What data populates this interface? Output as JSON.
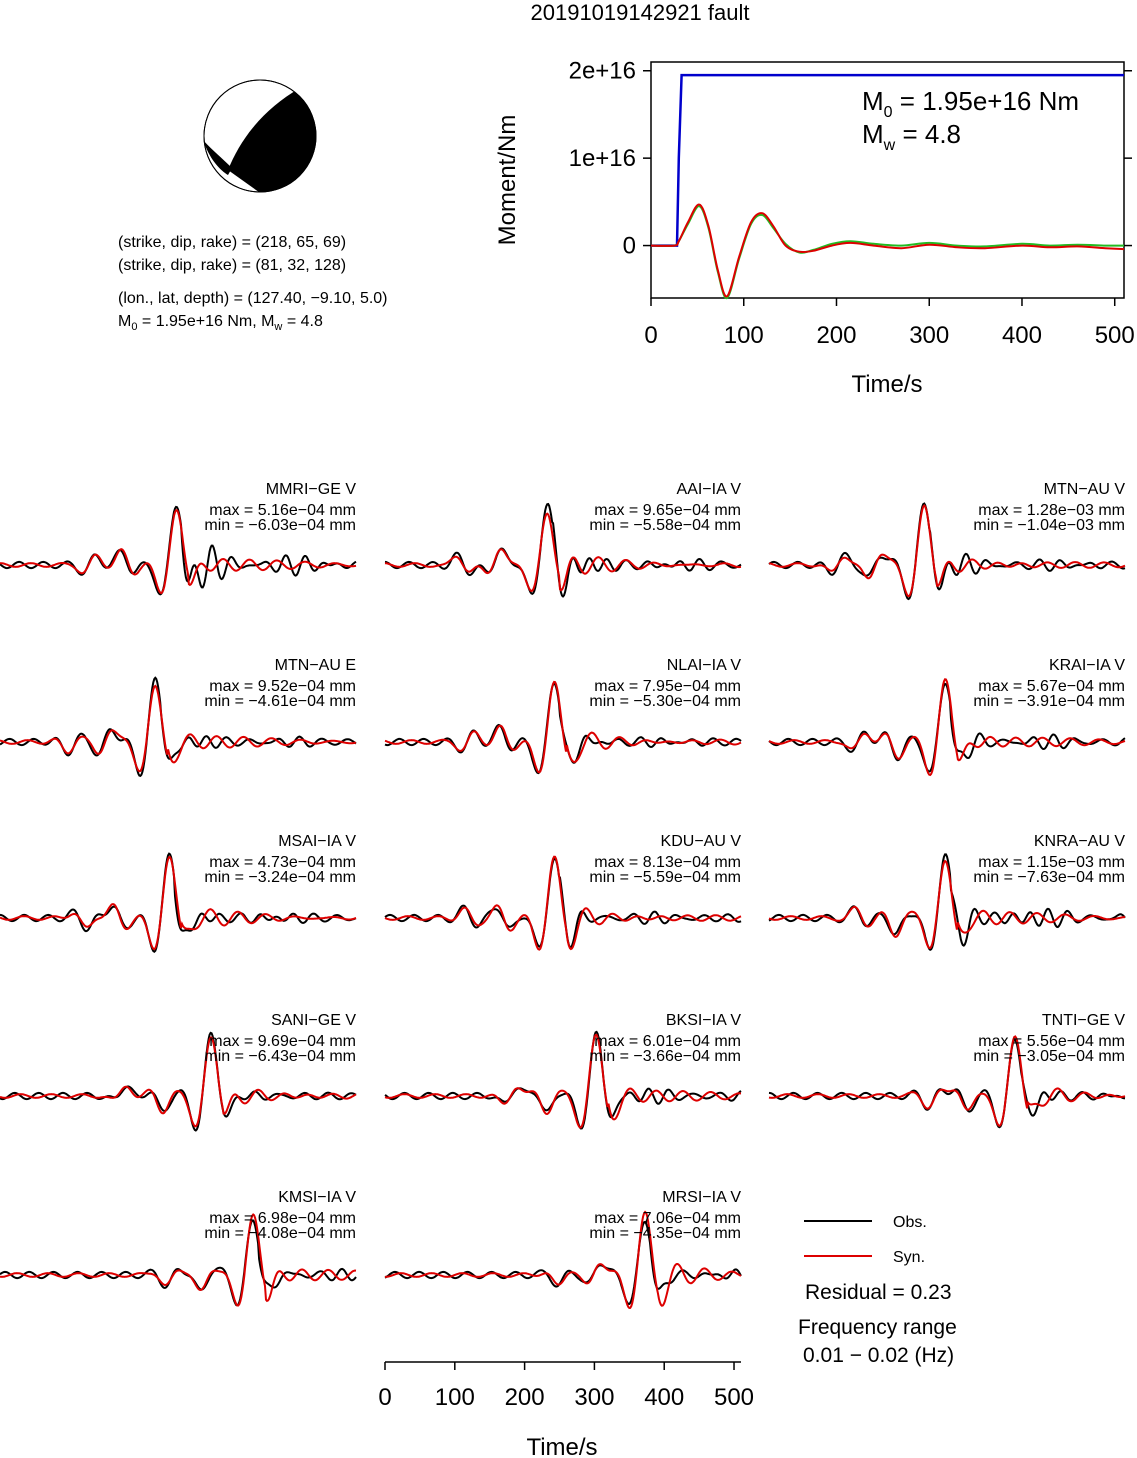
{
  "figure": {
    "title": "20191019142921 fault"
  },
  "focal": {
    "line1": "(strike, dip, rake) = (218, 65, 69)",
    "line2": "(strike, dip, rake) = (81, 32, 128)",
    "line3": "(lon., lat, depth) = (127.40, −9.10, 5.0)",
    "line4_m0": "M",
    "line4_m0_sub": "0",
    "line4_m0_rest": " = 1.95e+16 Nm, M",
    "line4_mw_sub": "w",
    "line4_mw_rest": " = 4.8"
  },
  "moment_panel": {
    "m0_label": "M",
    "m0_sub": "0",
    "m0_value": " = 1.95e+16 Nm",
    "mw_label": "M",
    "mw_sub": "w",
    "mw_value": " = 4.8"
  },
  "legend": {
    "obs": "Obs.",
    "syn": "Syn.",
    "residual": "Residual = 0.23",
    "freq_title": "Frequency range",
    "freq_value": "0.01 − 0.02 (Hz)"
  },
  "colors": {
    "obs": "#000000",
    "syn": "#dd0000",
    "moment": "#0000cc",
    "source_green": "#22bb22",
    "source_red": "#dd0000"
  },
  "chart_data": [
    {
      "type": "line",
      "title": "",
      "xlabel": "Time/s",
      "ylabel": "Moment/Nm",
      "xlim": [
        0,
        510
      ],
      "ylim": [
        -6000000000000000.0,
        2.1e+16
      ],
      "xticks": [
        "0",
        "100",
        "200",
        "300",
        "400",
        "500"
      ],
      "yticks": [
        "0",
        "1e+16",
        "2e+16"
      ],
      "series": [
        {
          "name": "",
          "color": "#0000cc",
          "x": [
            0,
            28,
            30,
            33,
            510
          ],
          "y": [
            0,
            0,
            1e+16,
            1.95e+16,
            1.95e+16
          ]
        },
        {
          "name": "",
          "color": "#22bb22",
          "x": [
            0,
            25,
            30,
            40,
            52,
            62,
            72,
            82,
            95,
            108,
            120,
            132,
            145,
            160,
            175,
            195,
            215,
            240,
            270,
            300,
            330,
            360,
            400,
            430,
            460,
            490,
            510
          ],
          "y": [
            0,
            0,
            500000000000000.0,
            2500000000000000.0,
            4500000000000000.0,
            2000000000000000.0,
            -3000000000000000.0,
            -6000000000000000.0,
            -1500000000000000.0,
            2500000000000000.0,
            3500000000000000.0,
            2000000000000000.0,
            200000000000000.0,
            -800000000000000.0,
            -500000000000000.0,
            200000000000000.0,
            500000000000000.0,
            200000000000000.0,
            0.0,
            300000000000000.0,
            0.0,
            -100000000000000.0,
            200000000000000.0,
            0.0,
            100000000000000.0,
            0.0,
            0.0
          ]
        },
        {
          "name": "",
          "color": "#dd0000",
          "x": [
            0,
            25,
            30,
            40,
            52,
            62,
            72,
            82,
            95,
            108,
            120,
            132,
            145,
            160,
            175,
            195,
            215,
            240,
            270,
            300,
            330,
            360,
            400,
            430,
            460,
            490,
            510
          ],
          "y": [
            0,
            0,
            500000000000000.0,
            2700000000000000.0,
            4700000000000000.0,
            2200000000000000.0,
            -2800000000000000.0,
            -5800000000000000.0,
            -1300000000000000.0,
            2700000000000000.0,
            3700000000000000.0,
            2200000000000000.0,
            0.0,
            -700000000000000.0,
            -600000000000000.0,
            0.0,
            300000000000000.0,
            0.0,
            -300000000000000.0,
            100000000000000.0,
            -200000000000000.0,
            -300000000000000.0,
            0.0,
            -200000000000000.0,
            -100000000000000.0,
            -300000000000000.0,
            -400000000000000.0
          ]
        }
      ]
    },
    {
      "type": "line",
      "title": "",
      "xlabel": "Time/s",
      "ylabel": "",
      "xlim": [
        0,
        510
      ],
      "xticks": [
        "0",
        "100",
        "200",
        "300",
        "400",
        "500"
      ],
      "stations": [
        {
          "name": "MMRI−GE V",
          "max": "max = 5.16e−04 mm",
          "min": "min = −6.03e−04 mm",
          "onset": 250,
          "amp_obs": 1.0,
          "amp_syn": 0.9,
          "coda": 0.8
        },
        {
          "name": "AAI−IA V",
          "max": "max = 9.65e−04 mm",
          "min": "min = −5.58e−04 mm",
          "onset": 230,
          "amp_obs": 1.0,
          "amp_syn": 0.85,
          "coda": 0.5
        },
        {
          "name": "MTN−AU V",
          "max": "max = 1.28e−03 mm",
          "min": "min = −1.04e−03 mm",
          "onset": 220,
          "amp_obs": 1.0,
          "amp_syn": 0.95,
          "coda": 0.4
        },
        {
          "name": "MTN−AU E",
          "max": "max = 9.52e−04 mm",
          "min": "min = −4.61e−04 mm",
          "onset": 220,
          "amp_obs": 1.0,
          "amp_syn": 0.9,
          "coda": 0.3
        },
        {
          "name": "NLAI−IA V",
          "max": "max = 7.95e−04 mm",
          "min": "min = −5.30e−04 mm",
          "onset": 240,
          "amp_obs": 1.0,
          "amp_syn": 1.0,
          "coda": 0.3
        },
        {
          "name": "KRAI−IA V",
          "max": "max = 5.67e−04 mm",
          "min": "min = −3.91e−04 mm",
          "onset": 250,
          "amp_obs": 1.0,
          "amp_syn": 1.0,
          "coda": 0.4
        },
        {
          "name": "MSAI−IA V",
          "max": "max = 4.73e−04 mm",
          "min": "min = −3.24e−04 mm",
          "onset": 240,
          "amp_obs": 1.0,
          "amp_syn": 1.0,
          "coda": 0.4
        },
        {
          "name": "KDU−AU V",
          "max": "max = 8.13e−04 mm",
          "min": "min = −5.59e−04 mm",
          "onset": 240,
          "amp_obs": 0.95,
          "amp_syn": 1.0,
          "coda": 0.3
        },
        {
          "name": "KNRA−AU V",
          "max": "max = 1.15e−03 mm",
          "min": "min = −7.63e−04 mm",
          "onset": 250,
          "amp_obs": 1.0,
          "amp_syn": 0.9,
          "coda": 0.7
        },
        {
          "name": "SANI−GE V",
          "max": "max = 9.69e−04 mm",
          "min": "min = −6.43e−04 mm",
          "onset": 300,
          "amp_obs": 1.0,
          "amp_syn": 0.95,
          "coda": 0.1
        },
        {
          "name": "BKSI−IA V",
          "max": "max = 6.01e−04 mm",
          "min": "min = −3.66e−04 mm",
          "onset": 300,
          "amp_obs": 1.0,
          "amp_syn": 1.0,
          "coda": 0.3
        },
        {
          "name": "TNTI−GE V",
          "max": "max = 5.56e−04 mm",
          "min": "min = −3.05e−04 mm",
          "onset": 350,
          "amp_obs": 0.9,
          "amp_syn": 1.0,
          "coda": 0.3
        },
        {
          "name": "KMSI−IA V",
          "max": "max = 6.98e−04 mm",
          "min": "min = −4.08e−04 mm",
          "onset": 360,
          "amp_obs": 0.9,
          "amp_syn": 1.0,
          "coda": 0.3
        },
        {
          "name": "MRSI−IA V",
          "max": "max = 7.06e−04 mm",
          "min": "min = −4.35e−04 mm",
          "onset": 370,
          "amp_obs": 0.9,
          "amp_syn": 1.0,
          "coda": 0.3
        }
      ]
    }
  ]
}
